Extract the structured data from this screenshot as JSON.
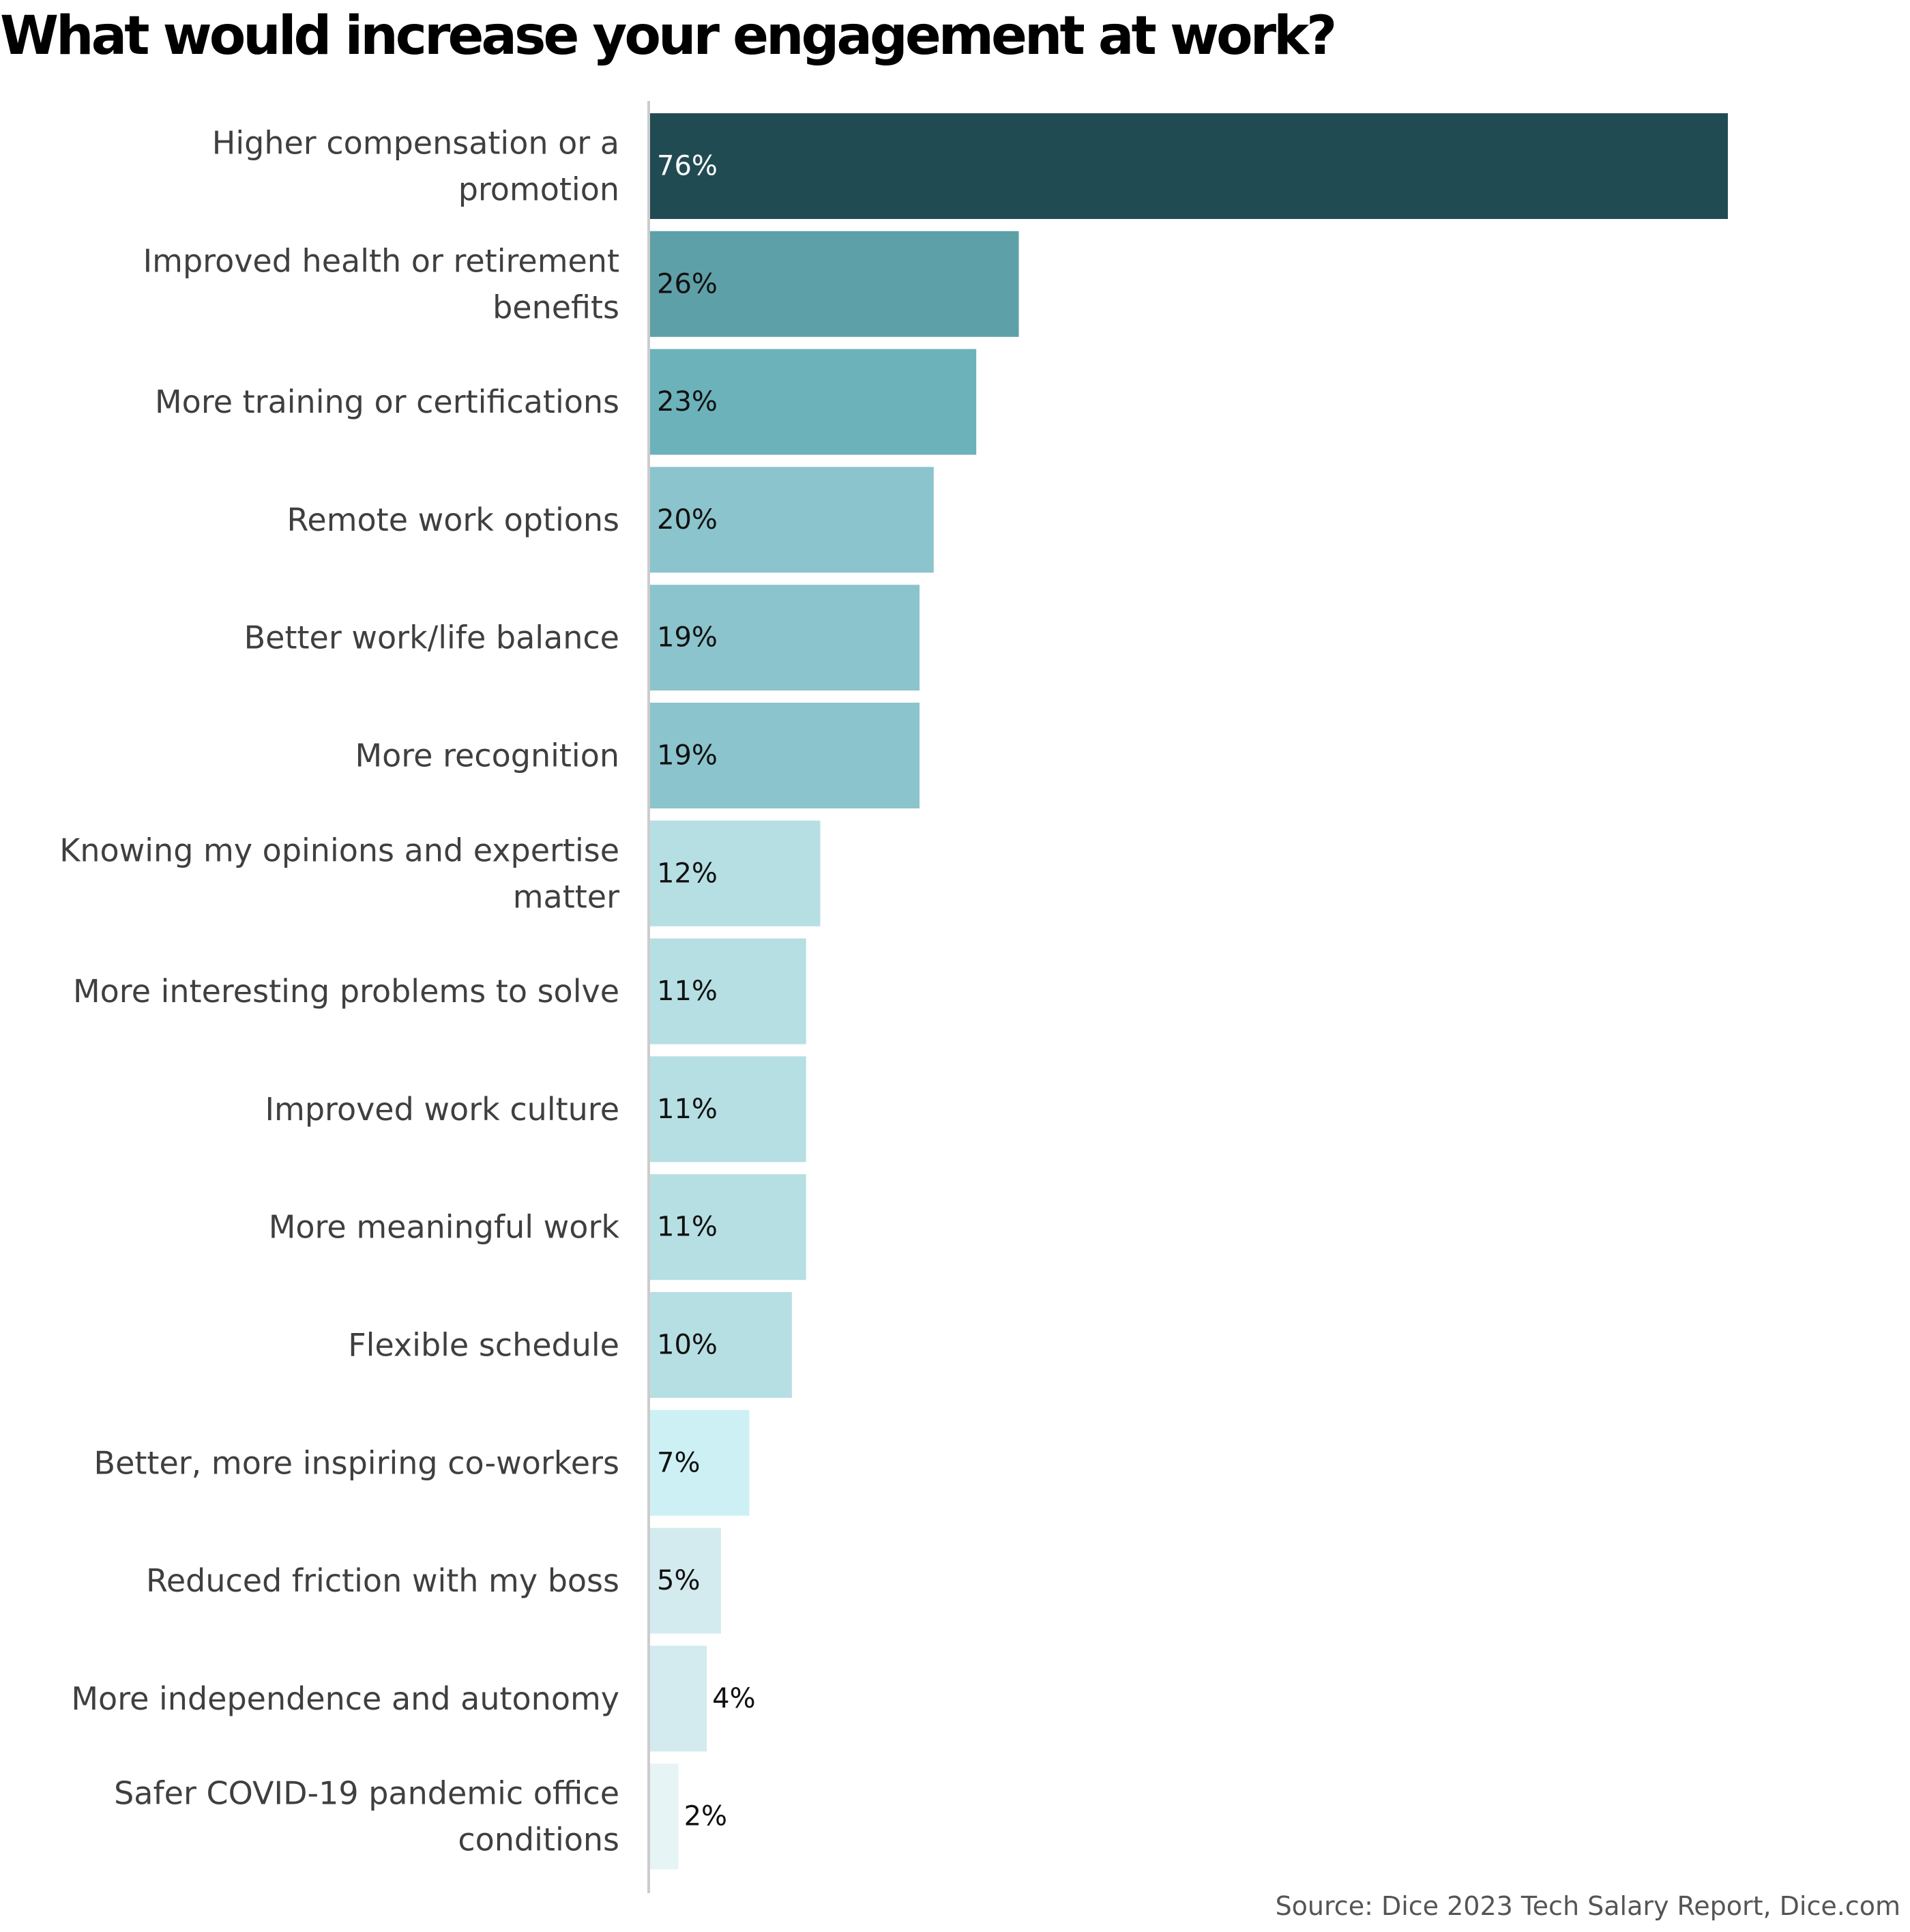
{
  "chart_data": {
    "type": "bar",
    "orientation": "horizontal",
    "title": "What would increase your engagement at work?",
    "categories": [
      [
        "Higher compensation or a",
        "promotion"
      ],
      [
        "Improved health or retirement",
        "benefits"
      ],
      [
        "More training or certifications"
      ],
      [
        "Remote work options"
      ],
      [
        "Better work/life balance"
      ],
      [
        "More recognition"
      ],
      [
        "Knowing my opinions and expertise",
        "matter"
      ],
      [
        "More interesting problems to solve"
      ],
      [
        "Improved work culture"
      ],
      [
        "More meaningful work"
      ],
      [
        "Flexible schedule"
      ],
      [
        "Better, more inspiring co-workers"
      ],
      [
        "Reduced friction with my boss"
      ],
      [
        "More independence and autonomy"
      ],
      [
        "Safer COVID-19 pandemic office",
        "conditions"
      ]
    ],
    "values": [
      76,
      26,
      23,
      20,
      19,
      19,
      12,
      11,
      11,
      11,
      10,
      7,
      5,
      4,
      2
    ],
    "value_labels": [
      "76%",
      "26%",
      "23%",
      "20%",
      "19%",
      "19%",
      "12%",
      "11%",
      "11%",
      "11%",
      "10%",
      "7%",
      "5%",
      "4%",
      "2%"
    ],
    "unit": "%",
    "colors": [
      "#214b53",
      "#5ea0a8",
      "#6cb2ba",
      "#8bc4cc",
      "#8bc4cc",
      "#8bc4cc",
      "#b6dfe4",
      "#b6dfe4",
      "#b6dfe4",
      "#b6dfe4",
      "#b6dfe4",
      "#cdf0f4",
      "#d3ebee",
      "#d3ebee",
      "#e6f4f5"
    ],
    "value_label_colors": [
      "#ffffff",
      "#111111",
      "#111111",
      "#111111",
      "#111111",
      "#111111",
      "#111111",
      "#111111",
      "#111111",
      "#111111",
      "#111111",
      "#111111",
      "#111111",
      "#111111",
      "#111111"
    ],
    "xlim": [
      0,
      76
    ],
    "xlabel": "",
    "ylabel": "",
    "grid": false,
    "legend": "none",
    "source": "Source: Dice 2023 Tech Salary Report, Dice.com"
  }
}
